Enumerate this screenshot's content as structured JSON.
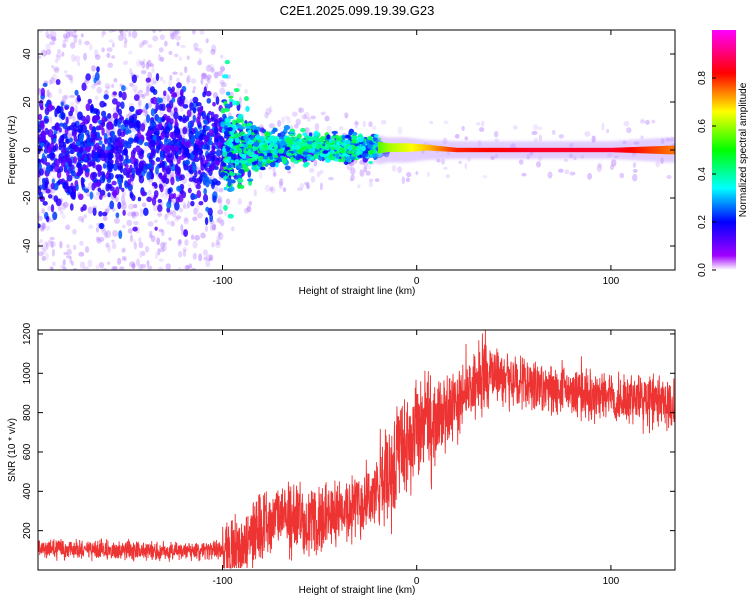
{
  "page": {
    "title": "C2E1.2025.099.19.39.G23"
  },
  "chart_data": [
    {
      "type": "heatmap",
      "title": "C2E1.2025.099.19.39.G23",
      "xlabel": "Height of straight line (km)",
      "ylabel": "Frequency (Hz)",
      "xlim": [
        -195,
        133
      ],
      "ylim": [
        -50,
        50
      ],
      "x_ticks": [
        -100,
        0,
        100
      ],
      "y_ticks": [
        -40,
        -20,
        0,
        20,
        40
      ],
      "grid": false,
      "colorbar": {
        "label": "Normalized spectral amplitude",
        "range": [
          0,
          1
        ],
        "ticks": [
          0.0,
          0.2,
          0.4,
          0.6,
          0.8
        ],
        "colormap": [
          "#ff00ff",
          "#ff0000",
          "#ffff00",
          "#00ff00",
          "#00ffff",
          "#0000ff",
          "#a000ff",
          "#ffffff"
        ]
      },
      "description_points": {
        "x": [
          -190,
          -150,
          -110,
          -80,
          -50,
          -25,
          -15,
          -5,
          5,
          20,
          60,
          100,
          130
        ],
        "center_freq": [
          0,
          0,
          0,
          1,
          1,
          1,
          1,
          1,
          1,
          0,
          0,
          0,
          0
        ],
        "amplitude": [
          0.2,
          0.2,
          0.25,
          0.4,
          0.45,
          0.5,
          0.6,
          0.65,
          0.7,
          0.8,
          0.85,
          0.85,
          0.75
        ],
        "spread_hz": [
          45,
          45,
          40,
          8,
          6,
          5,
          3,
          3,
          2,
          1.5,
          1.5,
          1.5,
          3
        ]
      }
    },
    {
      "type": "line",
      "xlabel": "Height of straight line (km)",
      "ylabel": "SNR (10 * v/v)",
      "xlim": [
        -195,
        133
      ],
      "ylim": [
        0,
        1220
      ],
      "x_ticks": [
        -100,
        0,
        100
      ],
      "y_ticks": [
        200,
        400,
        600,
        800,
        1000,
        1200
      ],
      "grid": false,
      "line_color": "#ee3333",
      "x": [
        -195,
        -170,
        -150,
        -130,
        -110,
        -90,
        -80,
        -70,
        -60,
        -50,
        -40,
        -30,
        -20,
        -15,
        -10,
        -5,
        0,
        5,
        10,
        20,
        30,
        40,
        50,
        60,
        70,
        80,
        90,
        100,
        110,
        120,
        133
      ],
      "y": [
        110,
        105,
        100,
        95,
        95,
        110,
        230,
        270,
        250,
        240,
        300,
        330,
        400,
        480,
        600,
        620,
        700,
        700,
        750,
        850,
        950,
        1000,
        960,
        930,
        920,
        900,
        890,
        880,
        870,
        860,
        830
      ]
    }
  ]
}
